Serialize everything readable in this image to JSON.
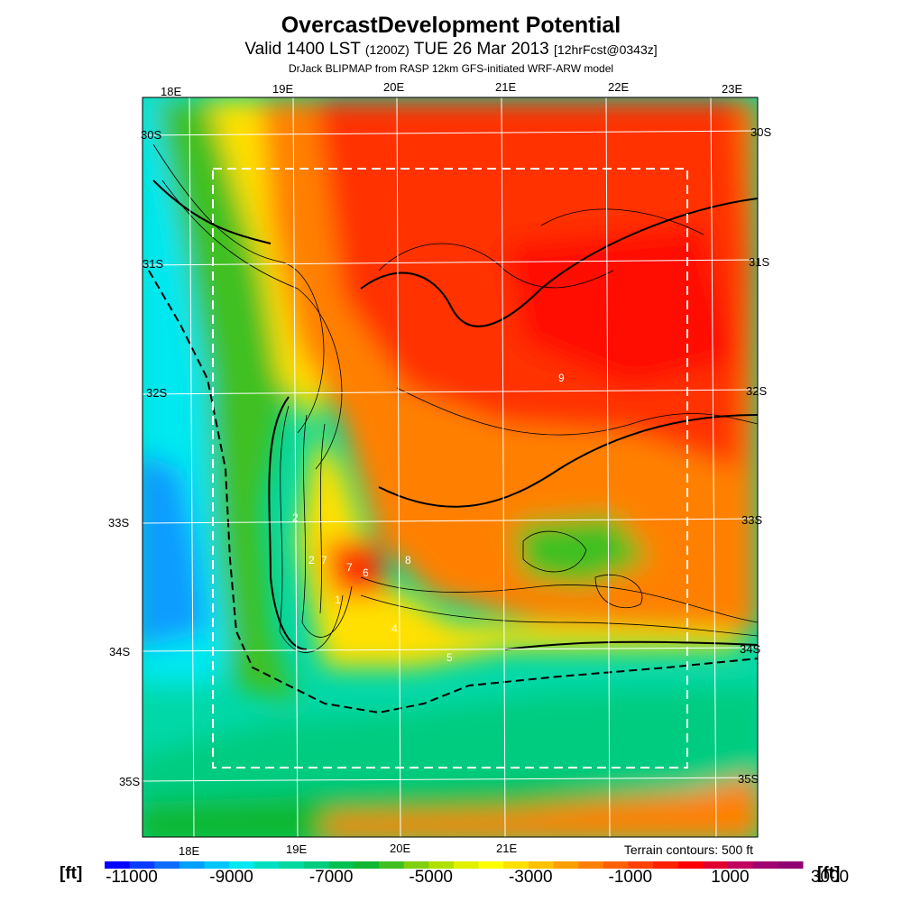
{
  "header": {
    "title": "OvercastDevelopment Potential",
    "valid_prefix": "Valid 1400 LST",
    "valid_utc": "(1200Z)",
    "valid_date": "TUE 26 Mar 2013",
    "forecast": "[12hrFcst@0343z]",
    "subtitle": "DrJack BLIPMAP from RASP 12km GFS-initiated WRF-ARW model"
  },
  "map": {
    "longitudes": [
      "18E",
      "19E",
      "20E",
      "21E",
      "22E",
      "23E"
    ],
    "latitudes": [
      "30S",
      "31S",
      "32S",
      "33S",
      "34S",
      "35S"
    ],
    "contour_labels": [
      "9",
      "2",
      "2",
      "7",
      "6",
      "8",
      "7",
      "1",
      "4",
      "5"
    ],
    "terrain_note": "Terrain contours: 500 ft"
  },
  "colorbar": {
    "unit": "[ft]",
    "tick_labels": [
      "-11000",
      "-9000",
      "-7000",
      "-5000",
      "-3000",
      "-1000",
      "1000",
      "3000"
    ],
    "colors": [
      "#0000ff",
      "#0a3cff",
      "#0f6cff",
      "#00a0ff",
      "#00c8ff",
      "#00e8f0",
      "#00e0c0",
      "#00d8a0",
      "#00cc80",
      "#00c050",
      "#10b830",
      "#40c020",
      "#80d010",
      "#b0e000",
      "#e0f000",
      "#ffff00",
      "#ffe000",
      "#ffc000",
      "#ffa000",
      "#ff8000",
      "#ff6000",
      "#ff4000",
      "#ff2000",
      "#ff0000",
      "#e00030",
      "#c00060",
      "#a00070",
      "#900070"
    ]
  }
}
